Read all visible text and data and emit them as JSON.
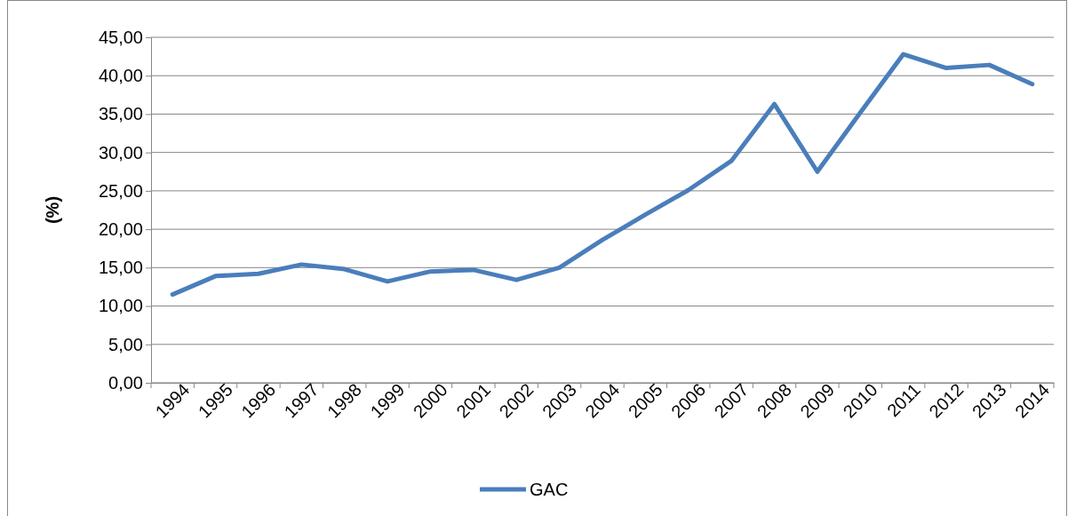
{
  "chart_data": {
    "type": "line",
    "ylabel": "(%)",
    "categories": [
      "1994",
      "1995",
      "1996",
      "1997",
      "1998",
      "1999",
      "2000",
      "2001",
      "2002",
      "2003",
      "2004",
      "2005",
      "2006",
      "2007",
      "2008",
      "2009",
      "2010",
      "2011",
      "2012",
      "2013",
      "2014"
    ],
    "series": [
      {
        "name": "GAC",
        "color": "#4a7ebb",
        "values": [
          11.5,
          13.9,
          14.2,
          15.4,
          14.8,
          13.2,
          14.5,
          14.7,
          13.4,
          15.0,
          18.6,
          21.9,
          25.1,
          28.9,
          36.3,
          27.5,
          35.2,
          42.8,
          41.0,
          41.4,
          38.9
        ]
      }
    ],
    "ylim": [
      0,
      45
    ],
    "yticks": [
      {
        "value": 0,
        "label": "0,00"
      },
      {
        "value": 5,
        "label": "5,00"
      },
      {
        "value": 10,
        "label": "10,00"
      },
      {
        "value": 15,
        "label": "15,00"
      },
      {
        "value": 20,
        "label": "20,00"
      },
      {
        "value": 25,
        "label": "25,00"
      },
      {
        "value": 30,
        "label": "30,00"
      },
      {
        "value": 35,
        "label": "35,00"
      },
      {
        "value": 40,
        "label": "40,00"
      },
      {
        "value": 45,
        "label": "45,00"
      }
    ],
    "grid": "y",
    "legend": "bottom",
    "marker": "none",
    "line_style": "solid"
  }
}
